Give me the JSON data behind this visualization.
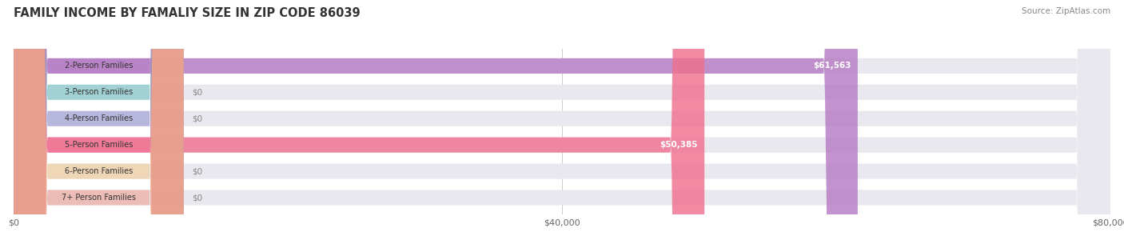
{
  "title": "FAMILY INCOME BY FAMALIY SIZE IN ZIP CODE 86039",
  "source": "Source: ZipAtlas.com",
  "categories": [
    "2-Person Families",
    "3-Person Families",
    "4-Person Families",
    "5-Person Families",
    "6-Person Families",
    "7+ Person Families"
  ],
  "values": [
    61563,
    0,
    0,
    50385,
    0,
    0
  ],
  "bar_colors": [
    "#b57cc4",
    "#6abfbf",
    "#9090d0",
    "#f07090",
    "#f5c888",
    "#f09888"
  ],
  "value_labels": [
    "$61,563",
    "$0",
    "$0",
    "$50,385",
    "$0",
    "$0"
  ],
  "xlim": [
    0,
    80000
  ],
  "xticks": [
    0,
    40000,
    80000
  ],
  "xtick_labels": [
    "$0",
    "$40,000",
    "$80,000"
  ],
  "background_color": "#ffffff",
  "title_fontsize": 10.5,
  "bar_height": 0.58
}
